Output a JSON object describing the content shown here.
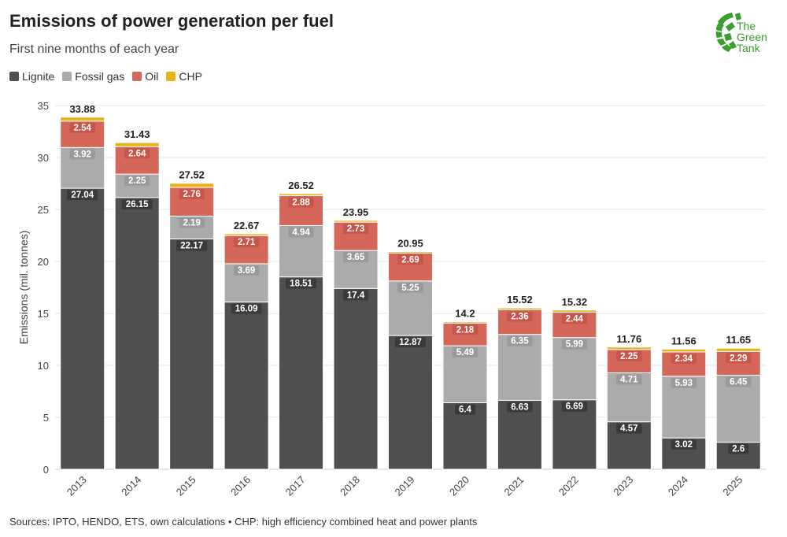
{
  "header": {
    "title": "Emissions of power generation per fuel",
    "subtitle": "First nine months of each year"
  },
  "logo": {
    "line1": "The",
    "line2": "Green",
    "line3": "Tank"
  },
  "footer": {
    "source": "Sources: IPTO, HENDO, ETS, own calculations • CHP: high efficiency combined heat and power plants"
  },
  "colors": {
    "lignite": "#4f4f4f",
    "fossil_gas": "#ababab",
    "oil": "#d4665a",
    "chp": "#e8b31c",
    "logo_green": "#3a9d2f"
  },
  "chart_data": {
    "type": "bar",
    "stacked": true,
    "ylabel": "Emissions (mil. tonnes)",
    "xlabel": "",
    "ylim": [
      0,
      35
    ],
    "yticks": [
      0,
      5,
      10,
      15,
      20,
      25,
      30,
      35
    ],
    "grid": true,
    "legend": "top-left",
    "categories": [
      "2013",
      "2014",
      "2015",
      "2016",
      "2017",
      "2018",
      "2019",
      "2020",
      "2021",
      "2022",
      "2023",
      "2024",
      "2025"
    ],
    "series": [
      {
        "name": "Lignite",
        "key": "lignite",
        "values": [
          27.04,
          26.15,
          22.17,
          16.09,
          18.51,
          17.4,
          12.87,
          6.4,
          6.63,
          6.69,
          4.57,
          3.02,
          2.6
        ]
      },
      {
        "name": "Fossil gas",
        "key": "fossil_gas",
        "values": [
          3.92,
          2.25,
          2.19,
          3.69,
          4.94,
          3.65,
          5.25,
          5.49,
          6.35,
          5.99,
          4.71,
          5.93,
          6.45
        ]
      },
      {
        "name": "Oil",
        "key": "oil",
        "values": [
          2.54,
          2.64,
          2.76,
          2.71,
          2.88,
          2.73,
          2.69,
          2.18,
          2.36,
          2.44,
          2.25,
          2.34,
          2.29
        ]
      },
      {
        "name": "CHP",
        "key": "chp",
        "values": [
          0.38,
          0.39,
          0.4,
          0.18,
          0.19,
          0.17,
          0.14,
          0.13,
          0.18,
          0.2,
          0.23,
          0.27,
          0.31
        ]
      }
    ],
    "totals": [
      "33.88",
      "31.43",
      "27.52",
      "22.67",
      "26.52",
      "23.95",
      "20.95",
      "14.2",
      "15.52",
      "15.32",
      "11.76",
      "11.56",
      "11.65"
    ],
    "segment_labels": {
      "lignite": [
        "27.04",
        "26.15",
        "22.17",
        "16.09",
        "18.51",
        "17.4",
        "12.87",
        "6.4",
        "6.63",
        "6.69",
        "4.57",
        "3.02",
        "2.6"
      ],
      "fossil_gas": [
        "3.92",
        "2.25",
        "2.19",
        "3.69",
        "4.94",
        "3.65",
        "5.25",
        "5.49",
        "6.35",
        "5.99",
        "4.71",
        "5.93",
        "6.45"
      ],
      "oil": [
        "2.54",
        "2.64",
        "2.76",
        "2.71",
        "2.88",
        "2.73",
        "2.69",
        "2.18",
        "2.36",
        "2.44",
        "2.25",
        "2.34",
        "2.29"
      ]
    }
  }
}
